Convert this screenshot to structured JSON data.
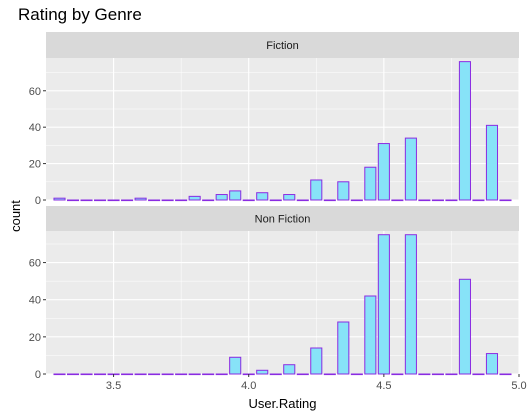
{
  "chart_data": {
    "type": "bar",
    "subtype": "faceted-histogram",
    "title": "Rating by Genre",
    "xlabel": "User.Rating",
    "ylabel": "count",
    "xlim": [
      3.25,
      5.0
    ],
    "x_ticks": [
      3.5,
      4.0,
      4.5,
      5.0
    ],
    "x_tick_labels": [
      "3.5",
      "4.0",
      "4.5",
      "5.0"
    ],
    "y_ticks": [
      0,
      20,
      40,
      60
    ],
    "y_tick_labels": [
      "0",
      "20",
      "40",
      "60"
    ],
    "bin_width": 0.05,
    "fill_color": "#87E3F8",
    "outline_color": "#8A2BE2",
    "panel_background": "#EBEBEB",
    "strip_background": "#D9D9D9",
    "grid": true,
    "bin_centers": [
      3.3,
      3.35,
      3.4,
      3.45,
      3.5,
      3.55,
      3.6,
      3.65,
      3.7,
      3.75,
      3.8,
      3.85,
      3.9,
      3.95,
      4.0,
      4.05,
      4.1,
      4.15,
      4.2,
      4.25,
      4.3,
      4.35,
      4.4,
      4.45,
      4.5,
      4.55,
      4.6,
      4.65,
      4.7,
      4.75,
      4.8,
      4.85,
      4.9,
      4.95
    ],
    "facets": [
      {
        "label": "Fiction",
        "ylim": [
          0,
          78
        ],
        "counts": [
          1,
          0,
          0,
          0,
          0,
          0,
          1,
          0,
          0,
          0,
          2,
          0,
          3,
          5,
          0,
          4,
          0,
          3,
          0,
          11,
          0,
          10,
          0,
          18,
          31,
          0,
          34,
          0,
          0,
          0,
          76,
          0,
          41,
          0
        ]
      },
      {
        "label": "Non Fiction",
        "ylim": [
          0,
          77
        ],
        "counts": [
          0,
          0,
          0,
          0,
          0,
          0,
          0,
          0,
          0,
          0,
          0,
          0,
          0,
          9,
          0,
          2,
          0,
          5,
          0,
          14,
          0,
          28,
          0,
          42,
          75,
          0,
          75,
          0,
          0,
          0,
          51,
          0,
          11,
          0
        ]
      }
    ]
  }
}
